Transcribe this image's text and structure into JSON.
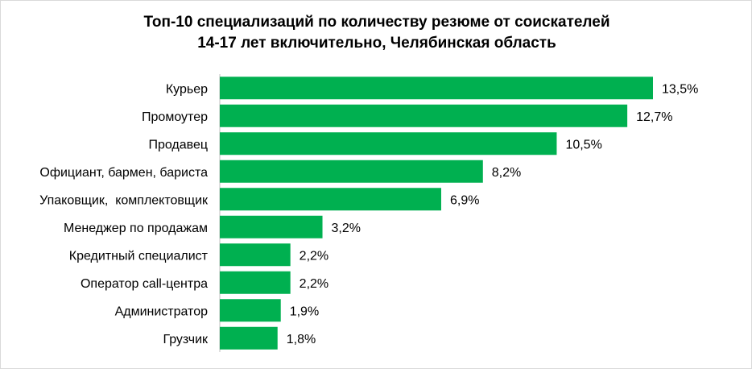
{
  "chart_data": {
    "type": "bar",
    "orientation": "horizontal",
    "title_lines": [
      "Топ-10 специализаций по количеству резюме от соискателей",
      "14-17 лет включительно, Челябинская область"
    ],
    "categories": [
      "Курьер",
      "Промоутер",
      "Продавец",
      "Официант, бармен, бариста",
      "Упаковщик,  комплектовщик",
      "Менеджер по продажам",
      "Кредитный специалист",
      "Оператор call-центра",
      "Администратор",
      "Грузчик"
    ],
    "values": [
      13.5,
      12.7,
      10.5,
      8.2,
      6.9,
      3.2,
      2.2,
      2.2,
      1.9,
      1.8
    ],
    "value_labels": [
      "13,5%",
      "12,7%",
      "10,5%",
      "8,2%",
      "6,9%",
      "3,2%",
      "2,2%",
      "2,2%",
      "1,9%",
      "1,8%"
    ],
    "unit": "%",
    "xlim": [
      0,
      13.5
    ],
    "bar_color": "#00b050",
    "grid": false,
    "legend": "none"
  }
}
